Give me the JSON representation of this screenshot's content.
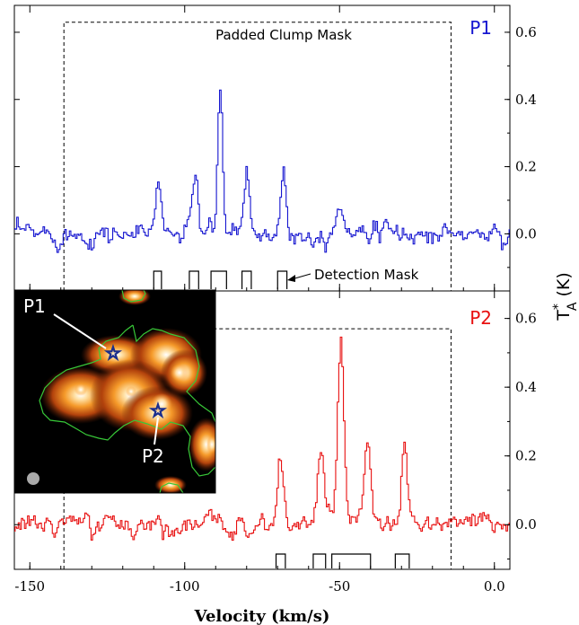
{
  "chart_data": {
    "type": "line",
    "xlabel": "Velocity (km/s)",
    "ylabel": "T_A* (K)",
    "ylabel_main": "T",
    "ylabel_sub": "A",
    "ylabel_sup": "*",
    "ylabel_unit": "(K)",
    "xlim": [
      -155,
      5
    ],
    "xticks": [
      -150,
      -100,
      -50,
      0
    ],
    "xtick_labels": [
      "-150",
      "-100",
      "-50",
      "0.0"
    ],
    "yticks": [
      0.0,
      0.2,
      0.4,
      0.6
    ],
    "ytick_labels": [
      "0.0",
      "0.2",
      "0.4",
      "0.6"
    ],
    "panels": [
      {
        "label": "P1",
        "color": "#1515d0",
        "ylim": [
          -0.17,
          0.68
        ],
        "mask_title": "Padded Clump Mask",
        "padded_mask": {
          "x": [
            -139,
            -14
          ],
          "top": 0.63
        },
        "detection_label": "Detection Mask",
        "noise": 0.018,
        "baseline": 0.0,
        "peaks": [
          {
            "v": -108.5,
            "amp": 0.17,
            "w": 0.9
          },
          {
            "v": -96.5,
            "amp": 0.19,
            "w": 0.9
          },
          {
            "v": -88.5,
            "amp": 0.41,
            "w": 0.8
          },
          {
            "v": -80.0,
            "amp": 0.19,
            "w": 0.9
          },
          {
            "v": -68.0,
            "amp": 0.19,
            "w": 0.9
          },
          {
            "v": -50.0,
            "amp": 0.09,
            "w": 1.3
          },
          {
            "v": -42.0,
            "amp": 0.05,
            "w": 1.5
          }
        ],
        "detection_boxes": [
          [
            -110,
            -107.5
          ],
          [
            -98.5,
            -95.5
          ],
          [
            -91.5,
            -86.5
          ],
          [
            -81.5,
            -78.5
          ],
          [
            -70,
            -67
          ]
        ]
      },
      {
        "label": "P2",
        "color": "#e81010",
        "ylim": [
          -0.13,
          0.68
        ],
        "padded_mask": {
          "x": [
            -139,
            -14
          ],
          "top": 0.57
        },
        "noise": 0.017,
        "baseline": 0.0,
        "peaks": [
          {
            "v": -69.0,
            "amp": 0.19,
            "w": 0.9
          },
          {
            "v": -56.0,
            "amp": 0.23,
            "w": 1.0
          },
          {
            "v": -49.5,
            "amp": 0.55,
            "w": 1.0
          },
          {
            "v": -41.0,
            "amp": 0.21,
            "w": 1.0
          },
          {
            "v": -29.0,
            "amp": 0.22,
            "w": 0.9
          }
        ],
        "detection_boxes": [
          [
            -70.5,
            -67.5
          ],
          [
            -58.5,
            -54.5
          ],
          [
            -52.5,
            -40
          ],
          [
            -32,
            -27.5
          ]
        ]
      }
    ],
    "inset": {
      "type": "image",
      "labels": [
        "P1",
        "P2"
      ],
      "colormap": "hot",
      "contour_color": "#38c838"
    }
  }
}
